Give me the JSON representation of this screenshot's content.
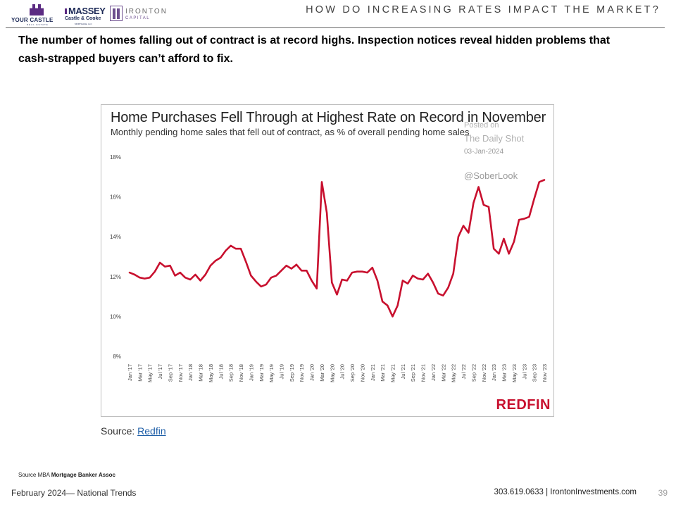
{
  "header": {
    "logos": {
      "your_castle": {
        "name": "YOUR CASTLE",
        "sub": "REAL ESTATE"
      },
      "massey": {
        "name": "MASSEY",
        "line2": "Castle & Cooke",
        "line3": "MORTGAGE, LLC"
      },
      "ironton": {
        "name": "IRONTON",
        "sub": "CAPITAL"
      }
    },
    "title": "HOW DO INCREASING RATES IMPACT THE MARKET?"
  },
  "headline": "The number of homes falling out of contract is at record highs.  Inspection notices reveal hidden problems that cash-strapped  buyers can’t afford to fix.",
  "chart": {
    "watermark": {
      "posted": "Posted on",
      "outlet": "The Daily Shot",
      "date": "03-Jan-2024",
      "handle": "@SoberLook"
    },
    "brand": "REDFIN",
    "colors": {
      "line": "#c8102e"
    }
  },
  "chart_data": {
    "type": "line",
    "title": "Home Purchases Fell Through at Highest Rate on Record in November",
    "subtitle": "Monthly pending home sales that fell out of contract, as % of overall pending home sales",
    "xlabel": "",
    "ylabel": "",
    "ylim": [
      8,
      18
    ],
    "yticks": [
      8,
      10,
      12,
      14,
      16,
      18
    ],
    "ytick_labels": [
      "8%",
      "10%",
      "12%",
      "14%",
      "16%",
      "18%"
    ],
    "grid": false,
    "x_tick_labels": [
      "Jan '17",
      "Mar '17",
      "May '17",
      "Jul '17",
      "Sep '17",
      "Nov '17",
      "Jan '18",
      "Mar '18",
      "May '18",
      "Jul '18",
      "Sep '18",
      "Nov '18",
      "Jan '19",
      "Mar '19",
      "May '19",
      "Jul '19",
      "Sep '19",
      "Nov '19",
      "Jan '20",
      "Mar '20",
      "May '20",
      "Jul '20",
      "Sep '20",
      "Nov '20",
      "Jan '21",
      "Mar '21",
      "May '21",
      "Jul '21",
      "Sep '21",
      "Nov '21",
      "Jan '22",
      "Mar '22",
      "May '22",
      "Jul '22",
      "Sep '22",
      "Nov '22",
      "Jan '23",
      "Mar '23",
      "May '23",
      "Jul '23",
      "Sep '23",
      "Nov '23"
    ],
    "x": [
      "2017-01",
      "2017-02",
      "2017-03",
      "2017-04",
      "2017-05",
      "2017-06",
      "2017-07",
      "2017-08",
      "2017-09",
      "2017-10",
      "2017-11",
      "2017-12",
      "2018-01",
      "2018-02",
      "2018-03",
      "2018-04",
      "2018-05",
      "2018-06",
      "2018-07",
      "2018-08",
      "2018-09",
      "2018-10",
      "2018-11",
      "2018-12",
      "2019-01",
      "2019-02",
      "2019-03",
      "2019-04",
      "2019-05",
      "2019-06",
      "2019-07",
      "2019-08",
      "2019-09",
      "2019-10",
      "2019-11",
      "2019-12",
      "2020-01",
      "2020-02",
      "2020-03",
      "2020-04",
      "2020-05",
      "2020-06",
      "2020-07",
      "2020-08",
      "2020-09",
      "2020-10",
      "2020-11",
      "2020-12",
      "2021-01",
      "2021-02",
      "2021-03",
      "2021-04",
      "2021-05",
      "2021-06",
      "2021-07",
      "2021-08",
      "2021-09",
      "2021-10",
      "2021-11",
      "2021-12",
      "2022-01",
      "2022-02",
      "2022-03",
      "2022-04",
      "2022-05",
      "2022-06",
      "2022-07",
      "2022-08",
      "2022-09",
      "2022-10",
      "2022-11",
      "2022-12",
      "2023-01",
      "2023-02",
      "2023-03",
      "2023-04",
      "2023-05",
      "2023-06",
      "2023-07",
      "2023-08",
      "2023-09",
      "2023-10",
      "2023-11"
    ],
    "values": [
      12.2,
      12.1,
      11.95,
      11.9,
      11.95,
      12.25,
      12.7,
      12.5,
      12.55,
      12.05,
      12.2,
      11.95,
      11.85,
      12.1,
      11.8,
      12.1,
      12.55,
      12.8,
      12.95,
      13.3,
      13.55,
      13.4,
      13.4,
      12.75,
      12.05,
      11.75,
      11.5,
      11.6,
      11.95,
      12.05,
      12.3,
      12.55,
      12.4,
      12.6,
      12.3,
      12.3,
      11.8,
      11.4,
      16.75,
      15.2,
      11.7,
      11.1,
      11.85,
      11.8,
      12.2,
      12.25,
      12.25,
      12.2,
      12.45,
      11.8,
      10.75,
      10.55,
      10.0,
      10.55,
      11.8,
      11.65,
      12.05,
      11.9,
      11.85,
      12.15,
      11.7,
      11.15,
      11.05,
      11.45,
      12.15,
      14.0,
      14.55,
      14.2,
      15.7,
      16.5,
      15.6,
      15.5,
      13.4,
      13.15,
      13.9,
      13.15,
      13.75,
      14.85,
      14.9,
      15.0,
      15.9,
      16.75,
      16.85
    ]
  },
  "source": {
    "label": "Source: ",
    "link": "Redfin"
  },
  "note": {
    "prefix": "Source MBA ",
    "bold": "Mortgage Banker Assoc"
  },
  "footer": {
    "left": "February 2024— National Trends",
    "right": "303.619.0633 | IrontonInvestments.com",
    "page": "39"
  }
}
